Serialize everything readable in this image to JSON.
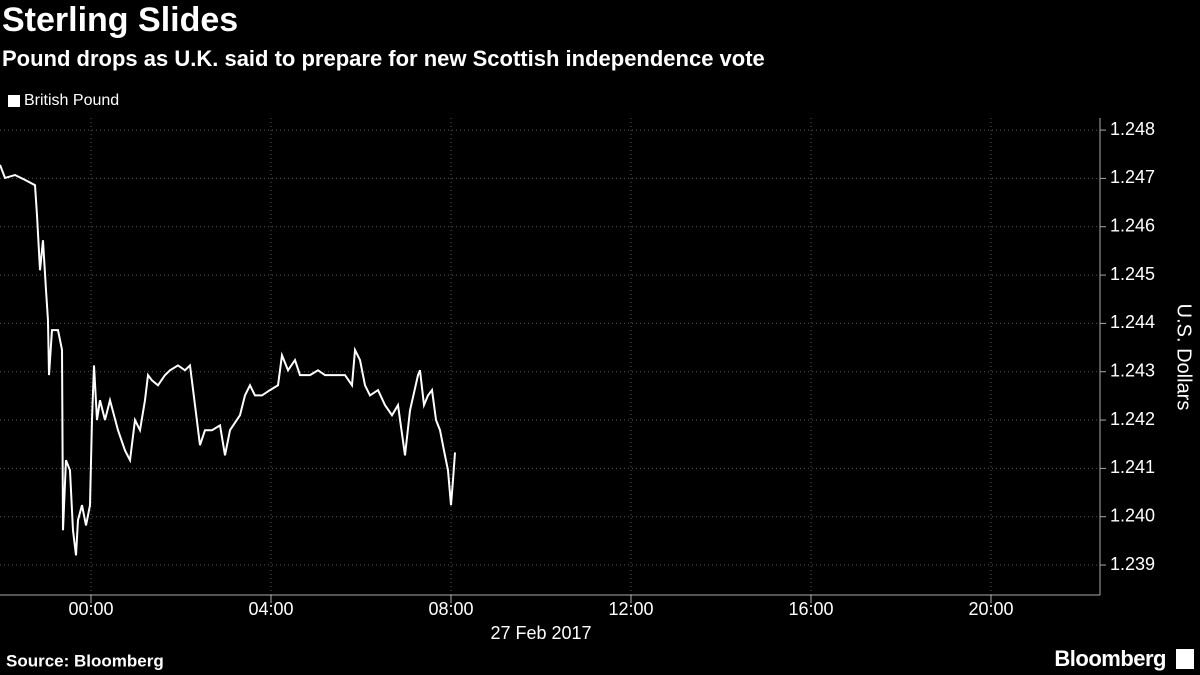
{
  "chart_data": {
    "type": "line",
    "title": "Sterling Slides",
    "subtitle": "Pound drops as U.K. said to prepare for new Scottish independence vote",
    "y_label": "U.S. Dollars",
    "date_label": "27 Feb 2017",
    "source": "Source: Bloomberg",
    "logo": "Bloomberg",
    "legend": "top-left",
    "grid": true,
    "x": [
      -2.022,
      -1.911,
      -1.689,
      -1.467,
      -1.244,
      -1.2,
      -1.133,
      -1.067,
      -1.0,
      -0.956,
      -0.933,
      -0.867,
      -0.733,
      -0.644,
      -0.622,
      -0.556,
      -0.467,
      -0.4,
      -0.333,
      -0.289,
      -0.2,
      -0.111,
      -0.022,
      0.022,
      0.067,
      0.133,
      0.2,
      0.311,
      0.422,
      0.6,
      0.756,
      0.867,
      0.978,
      1.089,
      1.2,
      1.267,
      1.356,
      1.489,
      1.644,
      1.756,
      1.933,
      2.089,
      2.2,
      2.311,
      2.422,
      2.533,
      2.689,
      2.867,
      2.978,
      3.089,
      3.311,
      3.422,
      3.533,
      3.644,
      3.8,
      3.978,
      4.156,
      4.244,
      4.378,
      4.533,
      4.644,
      4.867,
      5.044,
      5.2,
      5.422,
      5.644,
      5.8,
      5.867,
      5.978,
      6.089,
      6.2,
      6.378,
      6.533,
      6.689,
      6.822,
      6.978,
      7.089,
      7.267,
      7.311,
      7.4,
      7.489,
      7.578,
      7.667,
      7.756,
      7.844,
      7.933,
      8.0,
      8.044,
      8.089
    ],
    "series": [
      {
        "name": "British Pound",
        "color": "#ffffff",
        "values": [
          1.24728,
          1.24701,
          1.24707,
          1.24697,
          1.24686,
          1.24624,
          1.2451,
          1.24572,
          1.24469,
          1.24407,
          1.24293,
          1.24386,
          1.24386,
          1.24345,
          1.23972,
          1.24117,
          1.24096,
          1.23972,
          1.2392,
          1.23993,
          1.24024,
          1.23982,
          1.24024,
          1.242,
          1.24313,
          1.242,
          1.24241,
          1.242,
          1.24241,
          1.24179,
          1.24137,
          1.24117,
          1.242,
          1.24179,
          1.24241,
          1.24293,
          1.24282,
          1.24272,
          1.24293,
          1.24303,
          1.24313,
          1.24303,
          1.24313,
          1.24231,
          1.24148,
          1.24179,
          1.24179,
          1.24189,
          1.24127,
          1.24179,
          1.2421,
          1.24251,
          1.24272,
          1.24251,
          1.24251,
          1.24262,
          1.24272,
          1.24334,
          1.24303,
          1.24324,
          1.24293,
          1.24293,
          1.24303,
          1.24293,
          1.24293,
          1.24293,
          1.24272,
          1.24345,
          1.24324,
          1.24272,
          1.24251,
          1.24262,
          1.24231,
          1.2421,
          1.24231,
          1.24127,
          1.2422,
          1.24293,
          1.24303,
          1.24231,
          1.24251,
          1.24262,
          1.242,
          1.24179,
          1.24137,
          1.24096,
          1.24024,
          1.24075,
          1.24133
        ]
      }
    ],
    "xlim": [
      -2.022,
      22.422
    ],
    "xticks": [
      {
        "value": 0,
        "label": "00:00"
      },
      {
        "value": 4,
        "label": "04:00"
      },
      {
        "value": 8,
        "label": "08:00"
      },
      {
        "value": 12,
        "label": "12:00"
      },
      {
        "value": 16,
        "label": "16:00"
      },
      {
        "value": 20,
        "label": "20:00"
      }
    ],
    "ylim": [
      1.23838,
      1.24825
    ],
    "yticks": [
      1.248,
      1.247,
      1.246,
      1.245,
      1.244,
      1.243,
      1.242,
      1.241,
      {
        "value": 1.24,
        "label": "1.240"
      },
      1.239
    ]
  }
}
